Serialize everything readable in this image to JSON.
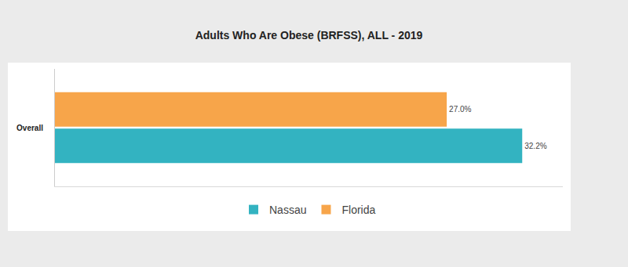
{
  "chart_data": {
    "type": "bar",
    "title": "Adults Who Are Obese (BRFSS), ALL - 2019",
    "orientation": "horizontal",
    "categories": [
      "Overall"
    ],
    "series": [
      {
        "name": "Nassau",
        "color": "#33b3c1",
        "values": [
          32.2
        ],
        "value_labels": [
          "32.2%"
        ]
      },
      {
        "name": "Florida",
        "color": "#f7a54a",
        "values": [
          27.0
        ],
        "value_labels": [
          "27.0%"
        ]
      }
    ],
    "xlim": [
      0,
      35
    ],
    "data_labels": true,
    "tick_labels": "y",
    "legend": "bottom",
    "grid": false
  }
}
